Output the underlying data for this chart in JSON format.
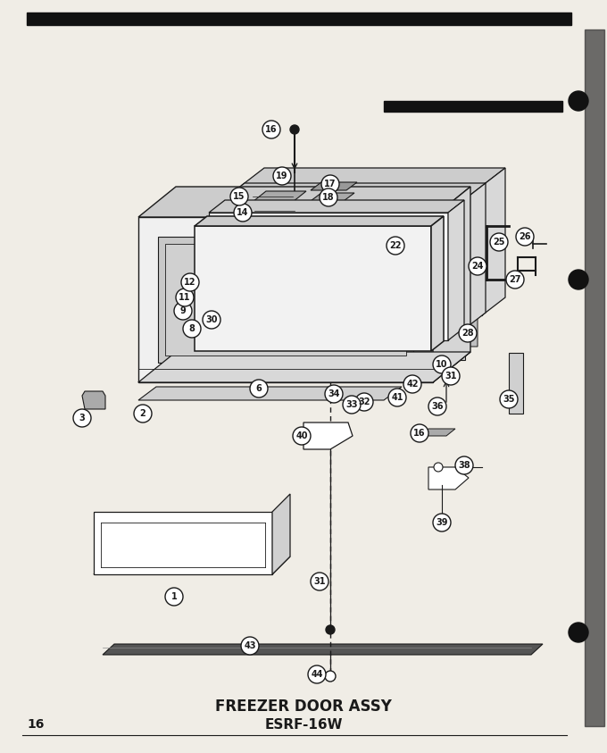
{
  "title_line1": "FREEZER DOOR ASSY",
  "title_line2": "ESRF-16W",
  "page_number": "16",
  "bg_color": "#f0ede6",
  "line_color": "#1a1a1a",
  "title_fontsize": 12,
  "subtitle_fontsize": 11
}
